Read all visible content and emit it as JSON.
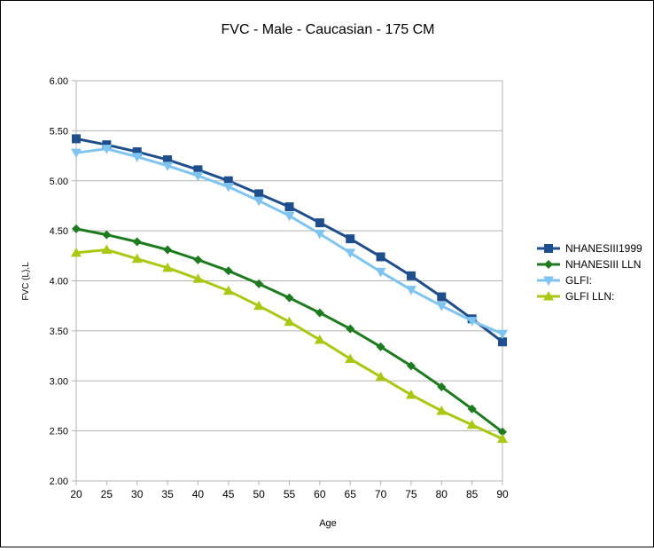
{
  "chart_data": {
    "type": "line",
    "title": "FVC - Male - Caucasian - 175 CM",
    "xlabel": "Age",
    "ylabel": "FVC (L),L",
    "x": [
      20,
      25,
      30,
      35,
      40,
      45,
      50,
      55,
      60,
      65,
      70,
      75,
      80,
      85,
      90
    ],
    "ylim": [
      2.0,
      6.0
    ],
    "yticks": [
      "2.00",
      "2.50",
      "3.00",
      "3.50",
      "4.00",
      "4.50",
      "5.00",
      "5.50",
      "6.00"
    ],
    "grid": "horizontal",
    "legend_position": "right",
    "series": [
      {
        "name": "NHANESIII1999",
        "color": "#1f4e8c",
        "marker": "square",
        "values": [
          5.42,
          5.36,
          5.29,
          5.21,
          5.11,
          5.0,
          4.87,
          4.74,
          4.58,
          4.42,
          4.24,
          4.05,
          3.84,
          3.62,
          3.39
        ]
      },
      {
        "name": "NHANESIII LLN",
        "color": "#1e7a1e",
        "marker": "diamond",
        "values": [
          4.52,
          4.46,
          4.39,
          4.31,
          4.21,
          4.1,
          3.97,
          3.83,
          3.68,
          3.52,
          3.34,
          3.15,
          2.94,
          2.72,
          2.49
        ]
      },
      {
        "name": "GLFI:",
        "color": "#7fc4f0",
        "marker": "triangle-down",
        "values": [
          5.28,
          5.32,
          5.24,
          5.15,
          5.05,
          4.94,
          4.8,
          4.65,
          4.47,
          4.28,
          4.09,
          3.91,
          3.75,
          3.6,
          3.47
        ]
      },
      {
        "name": "GLFI LLN:",
        "color": "#a8c814",
        "marker": "triangle-up",
        "values": [
          4.28,
          4.31,
          4.22,
          4.13,
          4.02,
          3.9,
          3.75,
          3.59,
          3.41,
          3.22,
          3.04,
          2.86,
          2.7,
          2.56,
          2.42
        ]
      }
    ]
  }
}
